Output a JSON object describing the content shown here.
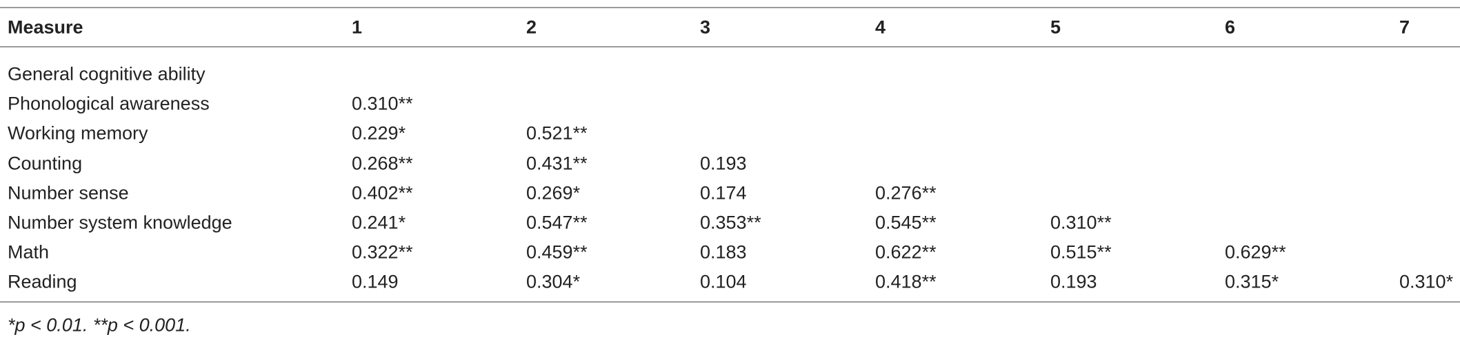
{
  "table": {
    "header": [
      "Measure",
      "1",
      "2",
      "3",
      "4",
      "5",
      "6",
      "7"
    ],
    "rows": [
      {
        "label": "General cognitive ability",
        "values": []
      },
      {
        "label": "Phonological awareness",
        "values": [
          "0.310**"
        ]
      },
      {
        "label": "Working memory",
        "values": [
          "0.229*",
          "0.521**"
        ]
      },
      {
        "label": "Counting",
        "values": [
          "0.268**",
          "0.431**",
          "0.193"
        ]
      },
      {
        "label": "Number sense",
        "values": [
          "0.402**",
          "0.269*",
          "0.174",
          "0.276**"
        ]
      },
      {
        "label": "Number system knowledge",
        "values": [
          "0.241*",
          "0.547**",
          "0.353**",
          "0.545**",
          "0.310**"
        ]
      },
      {
        "label": "Math",
        "values": [
          "0.322**",
          "0.459**",
          "0.183",
          "0.622**",
          "0.515**",
          "0.629**"
        ]
      },
      {
        "label": "Reading",
        "values": [
          "0.149",
          "0.304*",
          "0.104",
          "0.418**",
          "0.193",
          "0.315*",
          "0.310*"
        ]
      }
    ],
    "footnote": "*p < 0.01. **p < 0.001."
  }
}
